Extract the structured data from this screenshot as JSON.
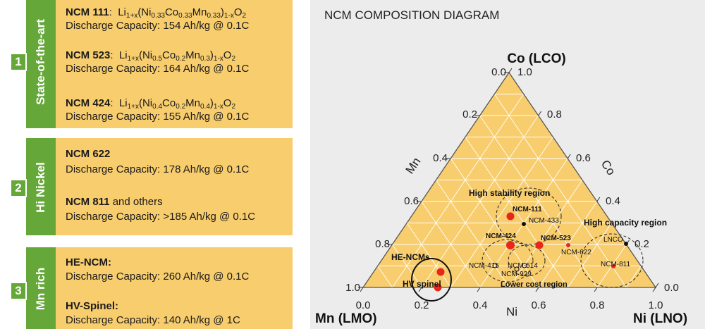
{
  "sections": [
    {
      "number": "1",
      "label": "State-of-the-art",
      "entries": [
        {
          "name": "NCM 111",
          "sep": ": ",
          "formula": "Li<sub>1+x</sub>(Ni<sub>0.33</sub>Co<sub>0.33</sub>Mn<sub>0.33</sub>)<sub>1-x</sub>O<sub>2</sub>",
          "capacity": "Discharge Capacity: 154 Ah/kg @ 0.1C"
        },
        {
          "name": "NCM 523",
          "sep": ": ",
          "formula": "Li<sub>1+x</sub>(Ni<sub>0.5</sub>Co<sub>0.2</sub>Mn<sub>0.3</sub>)<sub>1-x</sub>O<sub>2</sub>",
          "capacity": "Discharge Capacity: 164 Ah/kg @ 0.1C"
        },
        {
          "name": "NCM 424",
          "sep": ": ",
          "formula": "Li<sub>1+x</sub>(Ni<sub>0.4</sub>Co<sub>0.2</sub>Mn<sub>0.4</sub>)<sub>1-x</sub>O<sub>2</sub>",
          "capacity": "Discharge Capacity: 155 Ah/kg @ 0.1C"
        }
      ]
    },
    {
      "number": "2",
      "label": "Hi Nickel",
      "entries": [
        {
          "name": "NCM 622",
          "sep": "",
          "formula": "",
          "capacity": "Discharge Capacity: 178 Ah/kg @ 0.1C"
        },
        {
          "name": "NCM 811",
          "sep": " and others",
          "formula": "",
          "capacity": "Discharge Capacity: >185 Ah/kg @ 0.1C"
        }
      ]
    },
    {
      "number": "3",
      "label": "Mn rich",
      "entries": [
        {
          "name": "HE-NCM:",
          "sep": "",
          "formula": "",
          "capacity": "Discharge Capacity: 260 Ah/kg @ 0.1C"
        },
        {
          "name": "HV-Spinel:",
          "sep": "",
          "formula": "",
          "capacity": "Discharge Capacity: 140 Ah/kg @ 1C"
        }
      ]
    }
  ],
  "diagram": {
    "title": "NCM COMPOSITION DIAGRAM",
    "vertex_top": "Co (LCO)",
    "vertex_left": "Mn (LMO)",
    "vertex_right": "Ni (LNO)",
    "axis_mn": "Mn",
    "axis_co": "Co",
    "axis_ni": "Ni",
    "ticks_bottom": [
      "0.0",
      "0.2",
      "0.4",
      "0.6",
      "0.8",
      "1.0"
    ],
    "ticks_left": [
      "0.0",
      "0.2",
      "0.4",
      "0.6",
      "0.8",
      "1.0"
    ],
    "ticks_right": [
      "1.0",
      "0.8",
      "0.6",
      "0.4",
      "0.2",
      "0.0"
    ],
    "regions": {
      "high_stability": "High stability region",
      "high_capacity": "High capacity region",
      "lower_cost": "Lower cost region",
      "he_ncms": "HE-NCMs",
      "hv_spinel": "HV spinel"
    },
    "points": {
      "ncm111": "NCM-111",
      "ncm433": "NCM-433",
      "ncm424": "NCM-424",
      "ncm523": "NCM-523",
      "ncm622": "NCM-622",
      "lnco": "LNCO",
      "ncm415": "NCM-415",
      "ncm514": "NCM-514",
      "ncm929": "NCM-929",
      "ncm811": "NCM-811"
    },
    "colors": {
      "triangle_fill": "#f8cd6d",
      "marker_red": "#e8261a",
      "tab_green": "#65a839"
    }
  }
}
